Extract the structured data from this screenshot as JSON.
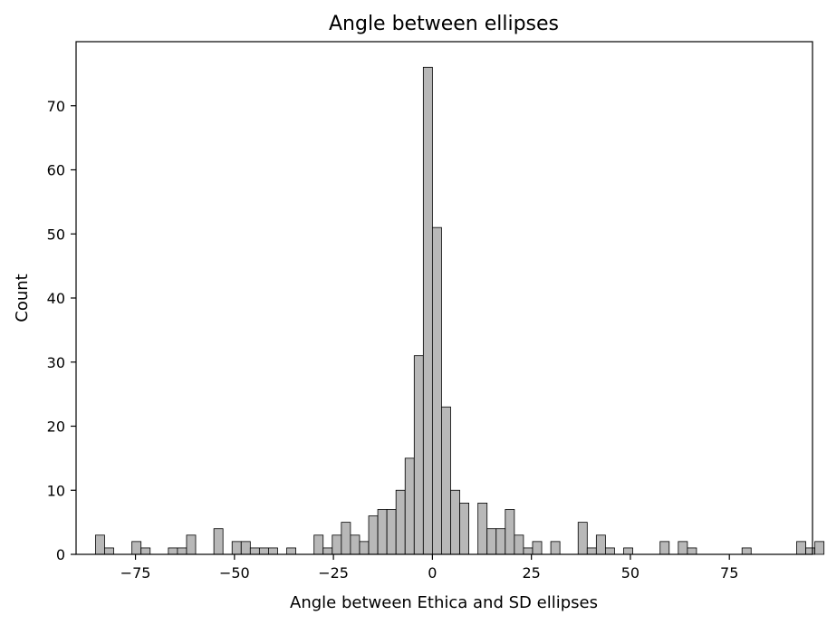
{
  "chart_data": {
    "type": "bar",
    "title": "Angle between ellipses",
    "xlabel": "Angle between Ethica and SD ellipses",
    "ylabel": "Count",
    "xlim": [
      -90,
      96
    ],
    "ylim": [
      0,
      80
    ],
    "xticks": [
      -75,
      -50,
      -25,
      0,
      25,
      50,
      75
    ],
    "xtick_labels": [
      "−75",
      "−50",
      "−25",
      "0",
      "25",
      "50",
      "75"
    ],
    "yticks": [
      0,
      10,
      20,
      30,
      40,
      50,
      60,
      70
    ],
    "ytick_labels": [
      "0",
      "10",
      "20",
      "30",
      "40",
      "50",
      "60",
      "70"
    ],
    "bin_width": 2.3,
    "bin_start": -85.1,
    "values": [
      3,
      1,
      0,
      0,
      2,
      1,
      0,
      0,
      1,
      1,
      3,
      0,
      0,
      4,
      0,
      2,
      2,
      1,
      1,
      1,
      0,
      1,
      0,
      0,
      3,
      1,
      3,
      5,
      3,
      2,
      6,
      7,
      7,
      10,
      15,
      31,
      76,
      51,
      23,
      10,
      8,
      0,
      8,
      4,
      4,
      7,
      3,
      1,
      2,
      0,
      2,
      0,
      0,
      5,
      1,
      3,
      1,
      0,
      1,
      0,
      0,
      0,
      2,
      0,
      2,
      1,
      0,
      0,
      0,
      0,
      0,
      1,
      0,
      0,
      0,
      0,
      0,
      2,
      1,
      2
    ],
    "grid": false,
    "bar_color": "#b8b8b8",
    "edge_color": "#000000"
  }
}
